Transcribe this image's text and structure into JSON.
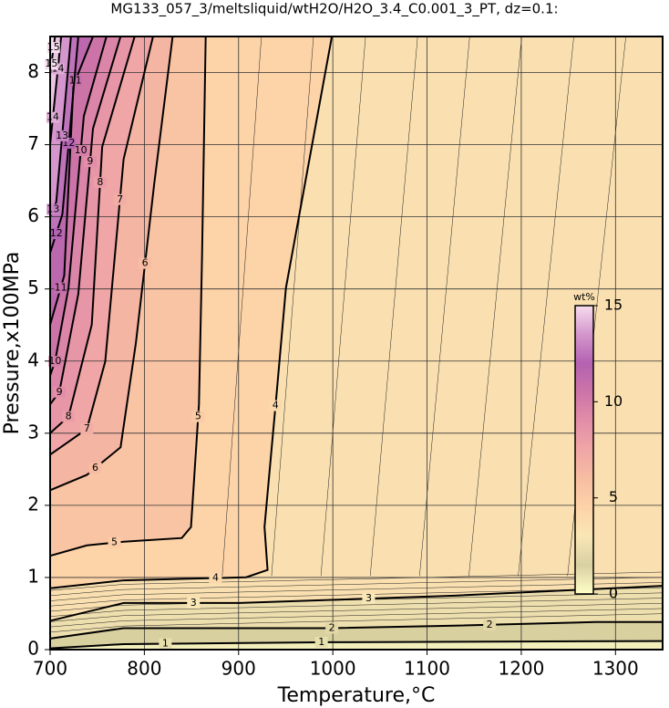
{
  "chart_data": {
    "type": "contour",
    "title": "MG133_057_3/meltsliquid/wtH2O/H2O_3.4_C0.001_3_PT, dz=0.1:",
    "x_label": "Temperature,°C",
    "y_label": "Pressure,x100MPa",
    "xlim": [
      700,
      1350
    ],
    "ylim": [
      0,
      8.5
    ],
    "xticks": [
      700,
      800,
      900,
      1000,
      1100,
      1200,
      1300
    ],
    "yticks": [
      0,
      1,
      2,
      3,
      4,
      5,
      6,
      7,
      8
    ],
    "grid": true,
    "levels": [
      1,
      2,
      3,
      4,
      5,
      6,
      7,
      8,
      9,
      10,
      11,
      12,
      13,
      14,
      15
    ],
    "colorbar_label": "wt%",
    "clim": [
      0,
      15
    ],
    "cticks": [
      0,
      5,
      10,
      15
    ],
    "colormap": [
      "#ffffc8",
      "#d9d0a0",
      "#f9e6b6",
      "#fdd3a8",
      "#f7bda2",
      "#f0a6a6",
      "#e38ea8",
      "#cc74a8",
      "#b462b2",
      "#d496cc",
      "#f6dcee"
    ]
  }
}
